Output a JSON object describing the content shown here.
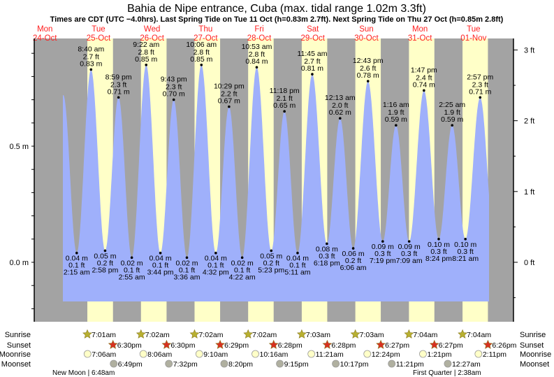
{
  "chart_data": {
    "type": "area",
    "title": "Bahia de Nipe entrance, Cuba (max. tidal range 1.02m 3.3ft)",
    "subtitle": "Times are CDT (UTC −4.0hrs). Last Spring Tide on Tue 11 Oct (h=0.83m 2.7ft). Next Spring Tide on Thu 27 Oct (h=0.85m 2.8ft)",
    "colors": {
      "night": "#a3a3a3",
      "day": "#ffffc8",
      "water": "#9fb0fb",
      "daylabel": "#ff2020"
    },
    "ylim_m": [
      -0.18,
      0.96
    ],
    "y_ticks_m": [
      {
        "v": 0.0,
        "label": "0.0 m"
      },
      {
        "v": 0.5,
        "label": "0.5 m"
      }
    ],
    "y_ticks_ft": [
      {
        "v": 0,
        "label": "0 ft"
      },
      {
        "v": 1,
        "label": "1 ft"
      },
      {
        "v": 2,
        "label": "2 ft"
      },
      {
        "v": 3,
        "label": "3 ft"
      }
    ],
    "days": [
      {
        "dow": "Mon",
        "date": "24-Oct"
      },
      {
        "dow": "Tue",
        "date": "25-Oct"
      },
      {
        "dow": "Wed",
        "date": "26-Oct"
      },
      {
        "dow": "Thu",
        "date": "27-Oct"
      },
      {
        "dow": "Fri",
        "date": "28-Oct"
      },
      {
        "dow": "Sat",
        "date": "29-Oct"
      },
      {
        "dow": "Sun",
        "date": "30-Oct"
      },
      {
        "dow": "Mon",
        "date": "31-Oct"
      },
      {
        "dow": "Tue",
        "date": "01-Nov"
      }
    ],
    "curve_start": {
      "date": "24-Oct",
      "time": "8:15 pm",
      "m": 0.72
    },
    "curve_end": {
      "date": "01-Nov",
      "time": "9:10 pm",
      "m": 0.12
    },
    "tides": [
      {
        "date": "25-Oct",
        "time": "2:15 am",
        "m": 0.04,
        "ft": "0.1 ft",
        "type": "low"
      },
      {
        "date": "25-Oct",
        "time": "8:40 am",
        "m": 0.83,
        "ft": "2.7 ft",
        "type": "high"
      },
      {
        "date": "25-Oct",
        "time": "2:58 pm",
        "m": 0.05,
        "ft": "0.2 ft",
        "type": "low"
      },
      {
        "date": "25-Oct",
        "time": "8:59 pm",
        "m": 0.71,
        "ft": "2.3 ft",
        "type": "high"
      },
      {
        "date": "26-Oct",
        "time": "2:55 am",
        "m": 0.02,
        "ft": "0.1 ft",
        "type": "low"
      },
      {
        "date": "26-Oct",
        "time": "9:22 am",
        "m": 0.85,
        "ft": "2.8 ft",
        "type": "high"
      },
      {
        "date": "26-Oct",
        "time": "3:44 pm",
        "m": 0.04,
        "ft": "0.1 ft",
        "type": "low"
      },
      {
        "date": "26-Oct",
        "time": "9:43 pm",
        "m": 0.7,
        "ft": "2.3 ft",
        "type": "high"
      },
      {
        "date": "27-Oct",
        "time": "3:36 am",
        "m": 0.02,
        "ft": "0.1 ft",
        "type": "low"
      },
      {
        "date": "27-Oct",
        "time": "10:06 am",
        "m": 0.85,
        "ft": "2.8 ft",
        "type": "high"
      },
      {
        "date": "27-Oct",
        "time": "4:32 pm",
        "m": 0.04,
        "ft": "0.1 ft",
        "type": "low"
      },
      {
        "date": "27-Oct",
        "time": "10:29 pm",
        "m": 0.67,
        "ft": "2.2 ft",
        "type": "high"
      },
      {
        "date": "28-Oct",
        "time": "4:22 am",
        "m": 0.02,
        "ft": "0.1 ft",
        "type": "low"
      },
      {
        "date": "28-Oct",
        "time": "10:53 am",
        "m": 0.84,
        "ft": "2.8 ft",
        "type": "high"
      },
      {
        "date": "28-Oct",
        "time": "5:23 pm",
        "m": 0.05,
        "ft": "0.2 ft",
        "type": "low"
      },
      {
        "date": "28-Oct",
        "time": "11:18 pm",
        "m": 0.65,
        "ft": "2.1 ft",
        "type": "high"
      },
      {
        "date": "29-Oct",
        "time": "5:11 am",
        "m": 0.04,
        "ft": "0.1 ft",
        "type": "low"
      },
      {
        "date": "29-Oct",
        "time": "11:45 am",
        "m": 0.81,
        "ft": "2.7 ft",
        "type": "high"
      },
      {
        "date": "29-Oct",
        "time": "6:18 pm",
        "m": 0.08,
        "ft": "0.3 ft",
        "type": "low"
      },
      {
        "date": "30-Oct",
        "time": "12:13 am",
        "m": 0.62,
        "ft": "2.0 ft",
        "type": "high"
      },
      {
        "date": "30-Oct",
        "time": "6:06 am",
        "m": 0.06,
        "ft": "0.2 ft",
        "type": "low"
      },
      {
        "date": "30-Oct",
        "time": "12:43 pm",
        "m": 0.78,
        "ft": "2.6 ft",
        "type": "high"
      },
      {
        "date": "30-Oct",
        "time": "7:19 pm",
        "m": 0.09,
        "ft": "0.3 ft",
        "type": "low"
      },
      {
        "date": "31-Oct",
        "time": "1:16 am",
        "m": 0.59,
        "ft": "1.9 ft",
        "type": "high"
      },
      {
        "date": "31-Oct",
        "time": "7:09 am",
        "m": 0.09,
        "ft": "0.3 ft",
        "type": "low"
      },
      {
        "date": "31-Oct",
        "time": "1:47 pm",
        "m": 0.74,
        "ft": "2.4 ft",
        "type": "high"
      },
      {
        "date": "31-Oct",
        "time": "8:24 pm",
        "m": 0.1,
        "ft": "0.3 ft",
        "type": "low"
      },
      {
        "date": "01-Nov",
        "time": "2:25 am",
        "m": 0.59,
        "ft": "1.9 ft",
        "type": "high"
      },
      {
        "date": "01-Nov",
        "time": "8:21 am",
        "m": 0.1,
        "ft": "0.3 ft",
        "type": "low"
      },
      {
        "date": "01-Nov",
        "time": "2:57 pm",
        "m": 0.71,
        "ft": "2.3 ft",
        "type": "high"
      }
    ],
    "row_labels": {
      "sunrise": "Sunrise",
      "sunset": "Sunset",
      "moonrise": "Moonrise",
      "moonset": "Moonset"
    },
    "sunrise": [
      {
        "date": "25-Oct",
        "time": "7:01am"
      },
      {
        "date": "26-Oct",
        "time": "7:02am"
      },
      {
        "date": "27-Oct",
        "time": "7:02am"
      },
      {
        "date": "28-Oct",
        "time": "7:02am"
      },
      {
        "date": "29-Oct",
        "time": "7:03am"
      },
      {
        "date": "30-Oct",
        "time": "7:03am"
      },
      {
        "date": "31-Oct",
        "time": "7:04am"
      },
      {
        "date": "01-Nov",
        "time": "7:04am"
      }
    ],
    "sunset": [
      {
        "date": "25-Oct",
        "time": "6:30pm"
      },
      {
        "date": "26-Oct",
        "time": "6:30pm"
      },
      {
        "date": "27-Oct",
        "time": "6:29pm"
      },
      {
        "date": "28-Oct",
        "time": "6:28pm"
      },
      {
        "date": "29-Oct",
        "time": "6:28pm"
      },
      {
        "date": "30-Oct",
        "time": "6:27pm"
      },
      {
        "date": "31-Oct",
        "time": "6:27pm"
      },
      {
        "date": "01-Nov",
        "time": "6:26pm"
      }
    ],
    "moonrise": [
      {
        "date": "25-Oct",
        "time": "7:06am"
      },
      {
        "date": "26-Oct",
        "time": "8:06am"
      },
      {
        "date": "27-Oct",
        "time": "9:10am"
      },
      {
        "date": "28-Oct",
        "time": "10:16am"
      },
      {
        "date": "29-Oct",
        "time": "11:21am"
      },
      {
        "date": "30-Oct",
        "time": "12:24pm"
      },
      {
        "date": "31-Oct",
        "time": "1:21pm"
      },
      {
        "date": "01-Nov",
        "time": "2:11pm"
      }
    ],
    "moonset": [
      {
        "date": "25-Oct",
        "time": "6:49pm"
      },
      {
        "date": "26-Oct",
        "time": "7:32pm"
      },
      {
        "date": "27-Oct",
        "time": "8:20pm"
      },
      {
        "date": "28-Oct",
        "time": "9:15pm"
      },
      {
        "date": "29-Oct",
        "time": "10:17pm"
      },
      {
        "date": "30-Oct",
        "time": "11:21pm"
      },
      {
        "date": "01-Nov",
        "time": "12:27am"
      }
    ],
    "moon_phases": [
      {
        "label": "New Moon | 6:48am"
      },
      {
        "label": "First Quarter | 2:38am"
      }
    ]
  }
}
